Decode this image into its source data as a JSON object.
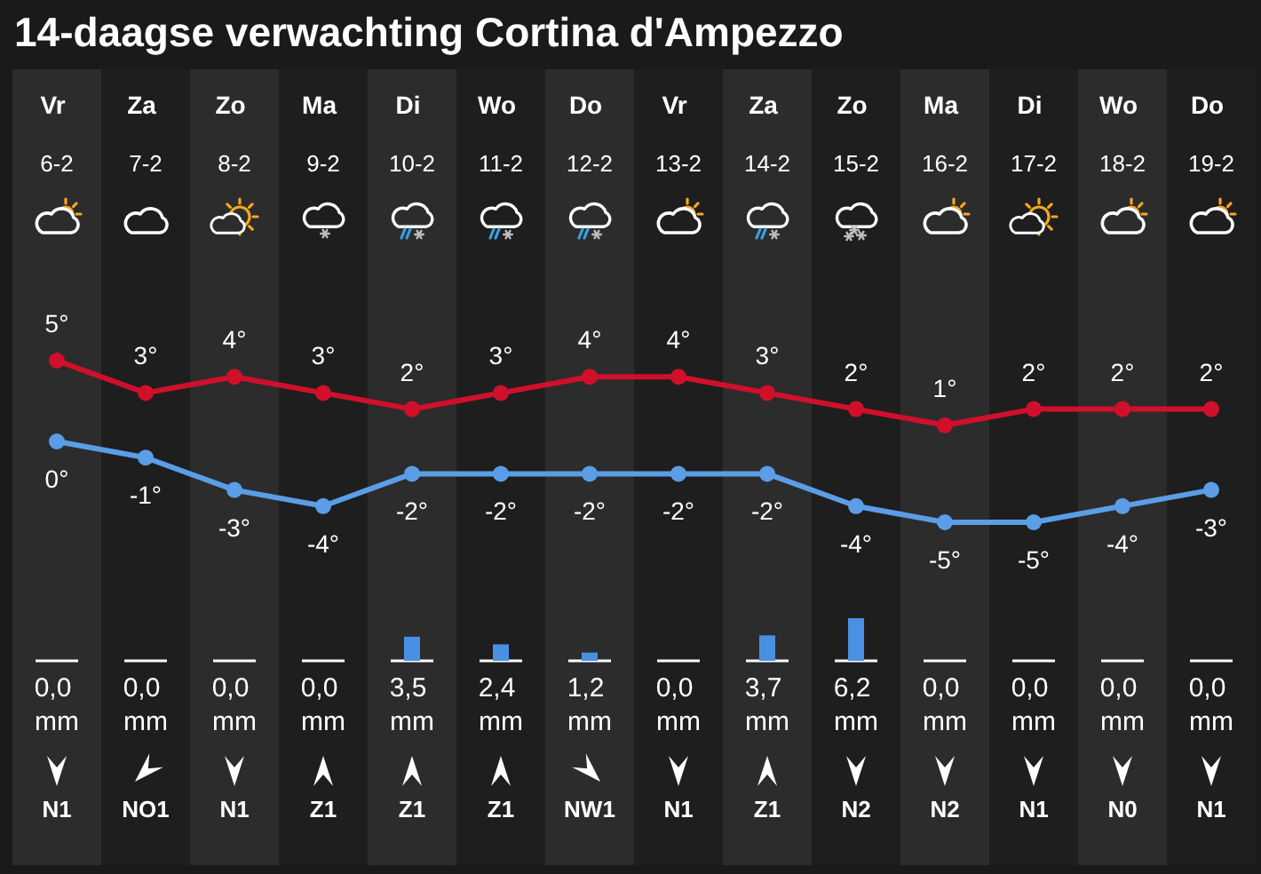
{
  "chart_data": [
    {
      "type": "line",
      "title": "14-daagse verwachting Cortina d'Ampezzo",
      "categories": [
        "Vr 6-2",
        "Za 7-2",
        "Zo 8-2",
        "Ma 9-2",
        "Di 10-2",
        "Wo 11-2",
        "Do 12-2",
        "Vr 13-2",
        "Za 14-2",
        "Zo 15-2",
        "Ma 16-2",
        "Di 17-2",
        "Wo 18-2",
        "Do 19-2"
      ],
      "series": [
        {
          "color": "#d0102b",
          "values": [
            5,
            3,
            4,
            3,
            2,
            3,
            4,
            4,
            3,
            2,
            1,
            2,
            2,
            2
          ],
          "value_labels": [
            "5°",
            "3°",
            "4°",
            "3°",
            "2°",
            "3°",
            "4°",
            "4°",
            "3°",
            "2°",
            "1°",
            "2°",
            "2°",
            "2°"
          ]
        },
        {
          "color": "#5b9de6",
          "values": [
            0,
            -1,
            -3,
            -4,
            -2,
            -2,
            -2,
            -2,
            -2,
            -4,
            -5,
            -5,
            -4,
            -3
          ],
          "value_labels": [
            "0°",
            "-1°",
            "-3°",
            "-4°",
            "-2°",
            "-2°",
            "-2°",
            "-2°",
            "-2°",
            "-4°",
            "-5°",
            "-5°",
            "-4°",
            "-3°"
          ]
        }
      ],
      "marker": "circle"
    },
    {
      "type": "bar",
      "categories": [
        null,
        null,
        null,
        null,
        null,
        null,
        null,
        null,
        null,
        null,
        null,
        null,
        null,
        null
      ],
      "color": "#4a90e2",
      "values": [
        0,
        0,
        0,
        0,
        3.5,
        2.4,
        1.2,
        0,
        3.7,
        6.2,
        0,
        0,
        0,
        0
      ],
      "value_labels": [
        "0,0 mm",
        "0,0 mm",
        "0,0 mm",
        "0,0 mm",
        "3,5 mm",
        "2,4 mm",
        "1,2 mm",
        "0,0 mm",
        "3,7 mm",
        "6,2 mm",
        "0,0 mm",
        "0,0 mm",
        "0,0 mm",
        "0,0 mm"
      ],
      "annotations": [
        "N1",
        "NO1",
        "N1",
        "Z1",
        "Z1",
        "Z1",
        "NW1",
        "N1",
        "Z1",
        "N2",
        "N2",
        "N1",
        "N0",
        "N1"
      ]
    }
  ]
}
